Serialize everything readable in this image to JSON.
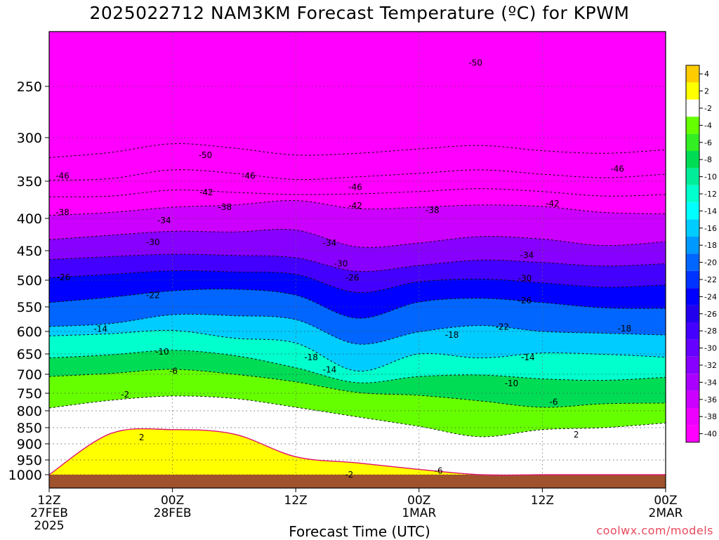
{
  "chart_data": {
    "type": "heatmap",
    "title": "2025022712 NAM3KM Forecast Temperature (ºC) for KPWM",
    "xlabel": "Forecast Time (UTC)",
    "credit": "coolwx.com/models",
    "x_ticks": [
      {
        "t": 0,
        "label": "12Z",
        "sub1": "27FEB",
        "sub2": "2025"
      },
      {
        "t": 12,
        "label": "00Z",
        "sub1": "28FEB",
        "sub2": ""
      },
      {
        "t": 24,
        "label": "12Z",
        "sub1": "",
        "sub2": ""
      },
      {
        "t": 36,
        "label": "00Z",
        "sub1": "1MAR",
        "sub2": ""
      },
      {
        "t": 48,
        "label": "12Z",
        "sub1": "",
        "sub2": ""
      },
      {
        "t": 60,
        "label": "00Z",
        "sub1": "2MAR",
        "sub2": ""
      }
    ],
    "y_ticks": [
      250,
      300,
      350,
      400,
      450,
      500,
      550,
      600,
      650,
      700,
      750,
      800,
      850,
      900,
      950,
      1000
    ],
    "ylim": [
      1000,
      200
    ],
    "colorbar": {
      "levels": [
        4,
        2,
        -2,
        -4,
        -6,
        -8,
        -10,
        -12,
        -14,
        -16,
        -18,
        -20,
        -22,
        -24,
        -26,
        -28,
        -30,
        -32,
        -34,
        -36,
        -38,
        -40
      ],
      "colors": [
        "#ffcc00",
        "#ffff00",
        "#ffffff",
        "#66ff00",
        "#33ee22",
        "#00dd55",
        "#00ee99",
        "#00ffcc",
        "#00ffff",
        "#00ccff",
        "#0099ff",
        "#0066ff",
        "#0033ff",
        "#0000ff",
        "#2200ee",
        "#4400ff",
        "#6600ff",
        "#8800ff",
        "#aa00ff",
        "#cc00ff",
        "#ee00ff",
        "#ff00ff"
      ]
    },
    "contours": [
      {
        "temp": -50,
        "p": [
          323,
          317,
          307,
          312,
          320,
          318,
          313,
          309,
          315,
          318,
          314
        ]
      },
      {
        "temp": -46,
        "p": [
          349,
          347,
          337,
          341,
          348,
          345,
          341,
          337,
          342,
          346,
          342
        ]
      },
      {
        "temp": -42,
        "p": [
          371,
          370,
          362,
          365,
          368,
          367,
          364,
          360,
          364,
          370,
          368
        ]
      },
      {
        "temp": -38,
        "p": [
          396,
          392,
          385,
          382,
          376,
          387,
          385,
          382,
          384,
          392,
          394
        ]
      },
      {
        "temp": -34,
        "p": [
          433,
          426,
          420,
          421,
          418,
          444,
          438,
          428,
          432,
          442,
          436
        ]
      },
      {
        "temp": -30,
        "p": [
          465,
          460,
          456,
          458,
          462,
          485,
          475,
          466,
          470,
          476,
          472
        ]
      },
      {
        "temp": -26,
        "p": [
          496,
          490,
          484,
          486,
          490,
          523,
          503,
          498,
          505,
          513,
          509
        ]
      },
      {
        "temp": -22,
        "p": [
          542,
          532,
          520,
          517,
          528,
          573,
          541,
          534,
          542,
          552,
          553
        ]
      },
      {
        "temp": -18,
        "p": [
          590,
          584,
          566,
          568,
          576,
          628,
          601,
          588,
          600,
          604,
          608
        ]
      },
      {
        "temp": -14,
        "p": [
          610,
          605,
          598,
          615,
          626,
          692,
          650,
          660,
          648,
          651,
          658
        ]
      },
      {
        "temp": -10,
        "p": [
          660,
          652,
          642,
          654,
          684,
          722,
          706,
          702,
          712,
          716,
          708
        ]
      },
      {
        "temp": -6,
        "p": [
          706,
          698,
          688,
          700,
          720,
          748,
          756,
          772,
          790,
          780,
          778
        ]
      },
      {
        "temp": -2,
        "p": [
          792,
          770,
          758,
          765,
          790,
          818,
          846,
          878,
          856,
          850,
          836
        ]
      },
      {
        "temp": 2,
        "p": [
          1000,
          868,
          856,
          870,
          940,
          960,
          982,
          1000,
          1000,
          1000,
          1000
        ]
      }
    ],
    "contour_labels": [
      {
        "t": 41.5,
        "p": 227,
        "text": "-50"
      },
      {
        "t": 15.2,
        "p": 320,
        "text": "-50"
      },
      {
        "t": 1.3,
        "p": 344,
        "text": "-46"
      },
      {
        "t": 19.4,
        "p": 344,
        "text": "-46"
      },
      {
        "t": 29.8,
        "p": 358,
        "text": "-46"
      },
      {
        "t": 55.3,
        "p": 336,
        "text": "-46"
      },
      {
        "t": 15.3,
        "p": 365,
        "text": "-42"
      },
      {
        "t": 29.8,
        "p": 383,
        "text": "-42"
      },
      {
        "t": 49.0,
        "p": 380,
        "text": "-42"
      },
      {
        "t": 1.3,
        "p": 392,
        "text": "-38"
      },
      {
        "t": 17.1,
        "p": 385,
        "text": "-38"
      },
      {
        "t": 37.3,
        "p": 389,
        "text": "-38"
      },
      {
        "t": 11.2,
        "p": 403,
        "text": "-34"
      },
      {
        "t": 27.3,
        "p": 438,
        "text": "-34"
      },
      {
        "t": 46.5,
        "p": 458,
        "text": "-34"
      },
      {
        "t": 10.1,
        "p": 437,
        "text": "-30"
      },
      {
        "t": 28.4,
        "p": 472,
        "text": "-30"
      },
      {
        "t": 46.3,
        "p": 497,
        "text": "-30"
      },
      {
        "t": 1.4,
        "p": 495,
        "text": "-26"
      },
      {
        "t": 29.5,
        "p": 496,
        "text": "-26"
      },
      {
        "t": 46.3,
        "p": 538,
        "text": "-26"
      },
      {
        "t": 10.1,
        "p": 528,
        "text": "-22"
      },
      {
        "t": 44.1,
        "p": 591,
        "text": "-22"
      },
      {
        "t": 5.0,
        "p": 595,
        "text": "-14"
      },
      {
        "t": 56.0,
        "p": 594,
        "text": "-18"
      },
      {
        "t": 25.5,
        "p": 659,
        "text": "-18"
      },
      {
        "t": 39.2,
        "p": 608,
        "text": "-18"
      },
      {
        "t": 27.3,
        "p": 689,
        "text": "-14"
      },
      {
        "t": 46.6,
        "p": 659,
        "text": "-14"
      },
      {
        "t": 11.0,
        "p": 645,
        "text": "-10"
      },
      {
        "t": 45.0,
        "p": 724,
        "text": "-10"
      },
      {
        "t": 12.1,
        "p": 692,
        "text": "-6"
      },
      {
        "t": 49.1,
        "p": 775,
        "text": "-6"
      },
      {
        "t": 37.9,
        "p": 987,
        "text": "-6"
      },
      {
        "t": 7.4,
        "p": 754,
        "text": "-2"
      },
      {
        "t": 29.2,
        "p": 1000,
        "text": "-2"
      },
      {
        "t": 9.0,
        "p": 880,
        "text": "2"
      },
      {
        "t": 51.3,
        "p": 872,
        "text": "2"
      }
    ]
  }
}
